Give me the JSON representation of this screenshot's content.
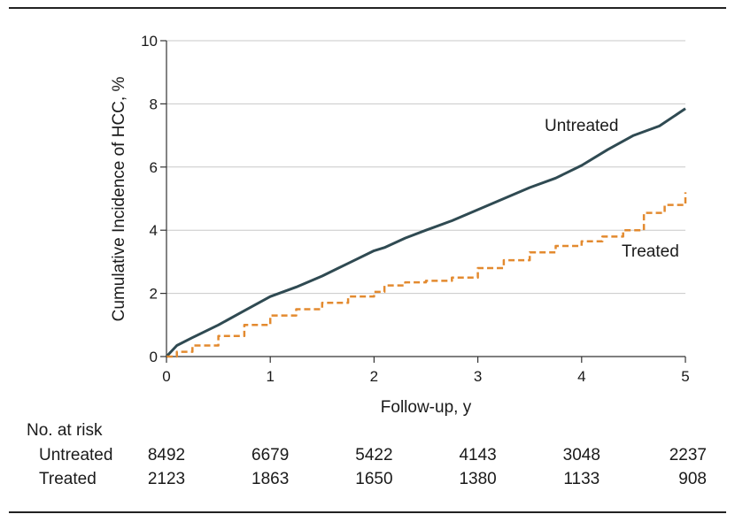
{
  "chart_data": {
    "type": "line",
    "xlabel": "Follow-up, y",
    "ylabel": "Cumulative Incidence of HCC, %",
    "xlim": [
      0,
      5
    ],
    "ylim": [
      0,
      10
    ],
    "xticks": [
      "0",
      "1",
      "2",
      "3",
      "4",
      "5"
    ],
    "yticks": [
      "0",
      "2",
      "4",
      "6",
      "8",
      "10"
    ],
    "grid": "horizontal",
    "series": [
      {
        "name": "Untreated",
        "color": "#2f4a52",
        "style": "solid",
        "x": [
          0,
          0.1,
          0.25,
          0.5,
          0.75,
          1.0,
          1.25,
          1.5,
          1.75,
          2.0,
          2.1,
          2.3,
          2.5,
          2.75,
          3.0,
          3.25,
          3.5,
          3.75,
          4.0,
          4.25,
          4.5,
          4.75,
          5.0
        ],
        "y": [
          0,
          0.35,
          0.6,
          1.0,
          1.45,
          1.9,
          2.2,
          2.55,
          2.95,
          3.35,
          3.45,
          3.75,
          4.0,
          4.3,
          4.65,
          5.0,
          5.35,
          5.65,
          6.05,
          6.55,
          7.0,
          7.3,
          7.85
        ]
      },
      {
        "name": "Treated",
        "color": "#e38a2f",
        "style": "dashed-step",
        "x": [
          0,
          0.1,
          0.25,
          0.5,
          0.75,
          1.0,
          1.25,
          1.5,
          1.75,
          2.0,
          2.1,
          2.3,
          2.5,
          2.75,
          3.0,
          3.25,
          3.5,
          3.75,
          4.0,
          4.2,
          4.4,
          4.6,
          4.8,
          5.0
        ],
        "y": [
          0,
          0.15,
          0.35,
          0.65,
          1.0,
          1.3,
          1.5,
          1.7,
          1.9,
          2.05,
          2.25,
          2.35,
          2.4,
          2.5,
          2.8,
          3.05,
          3.3,
          3.5,
          3.65,
          3.8,
          4.0,
          4.55,
          4.8,
          5.2
        ]
      }
    ],
    "labels": {
      "untreated": "Untreated",
      "treated": "Treated"
    },
    "at_risk": {
      "title": "No. at risk",
      "rows": [
        {
          "label": "Untreated",
          "values": [
            "8492",
            "6679",
            "5422",
            "4143",
            "3048",
            "2237"
          ]
        },
        {
          "label": "Treated",
          "values": [
            "2123",
            "1863",
            "1650",
            "1380",
            "1133",
            "908"
          ]
        }
      ]
    }
  }
}
